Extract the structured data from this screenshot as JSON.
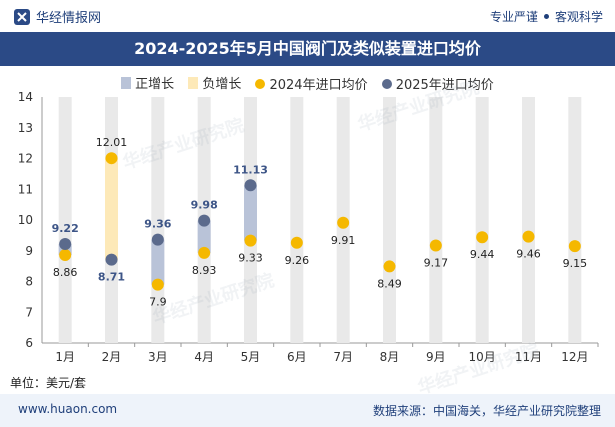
{
  "header": {
    "brand": "华经情报网",
    "tagline_left": "专业严谨",
    "tagline_right": "客观科学"
  },
  "footer": {
    "website": "www.huaon.com",
    "source": "数据来源：中国海关，华经产业研究院整理"
  },
  "unit_label": "单位：美元/套",
  "watermark": "华经产业研究院",
  "colors": {
    "title_bg": "#2b4a86",
    "increase": "#b9c3d8",
    "decrease": "#fde9b8",
    "series_2024": "#f5b800",
    "series_2025": "#5b6a8c",
    "bg_bar": "#e9e9e9"
  },
  "chart_data": {
    "type": "line",
    "title": "2024-2025年5月中国阀门及类似装置进口均价",
    "categories": [
      "1月",
      "2月",
      "3月",
      "4月",
      "5月",
      "6月",
      "7月",
      "8月",
      "9月",
      "10月",
      "11月",
      "12月"
    ],
    "ylim": [
      6,
      14
    ],
    "yticks": [
      6,
      7,
      8,
      9,
      10,
      11,
      12,
      13,
      14
    ],
    "legend": [
      "正增长",
      "负增长",
      "2024年进口均价",
      "2025年进口均价"
    ],
    "series": [
      {
        "name": "2024年进口均价",
        "values": [
          8.86,
          12.01,
          7.9,
          8.93,
          9.33,
          9.26,
          9.91,
          8.49,
          9.17,
          9.44,
          9.46,
          9.15
        ]
      },
      {
        "name": "2025年进口均价",
        "values": [
          9.22,
          8.71,
          9.36,
          9.98,
          11.13,
          null,
          null,
          null,
          null,
          null,
          null,
          null
        ]
      }
    ]
  }
}
